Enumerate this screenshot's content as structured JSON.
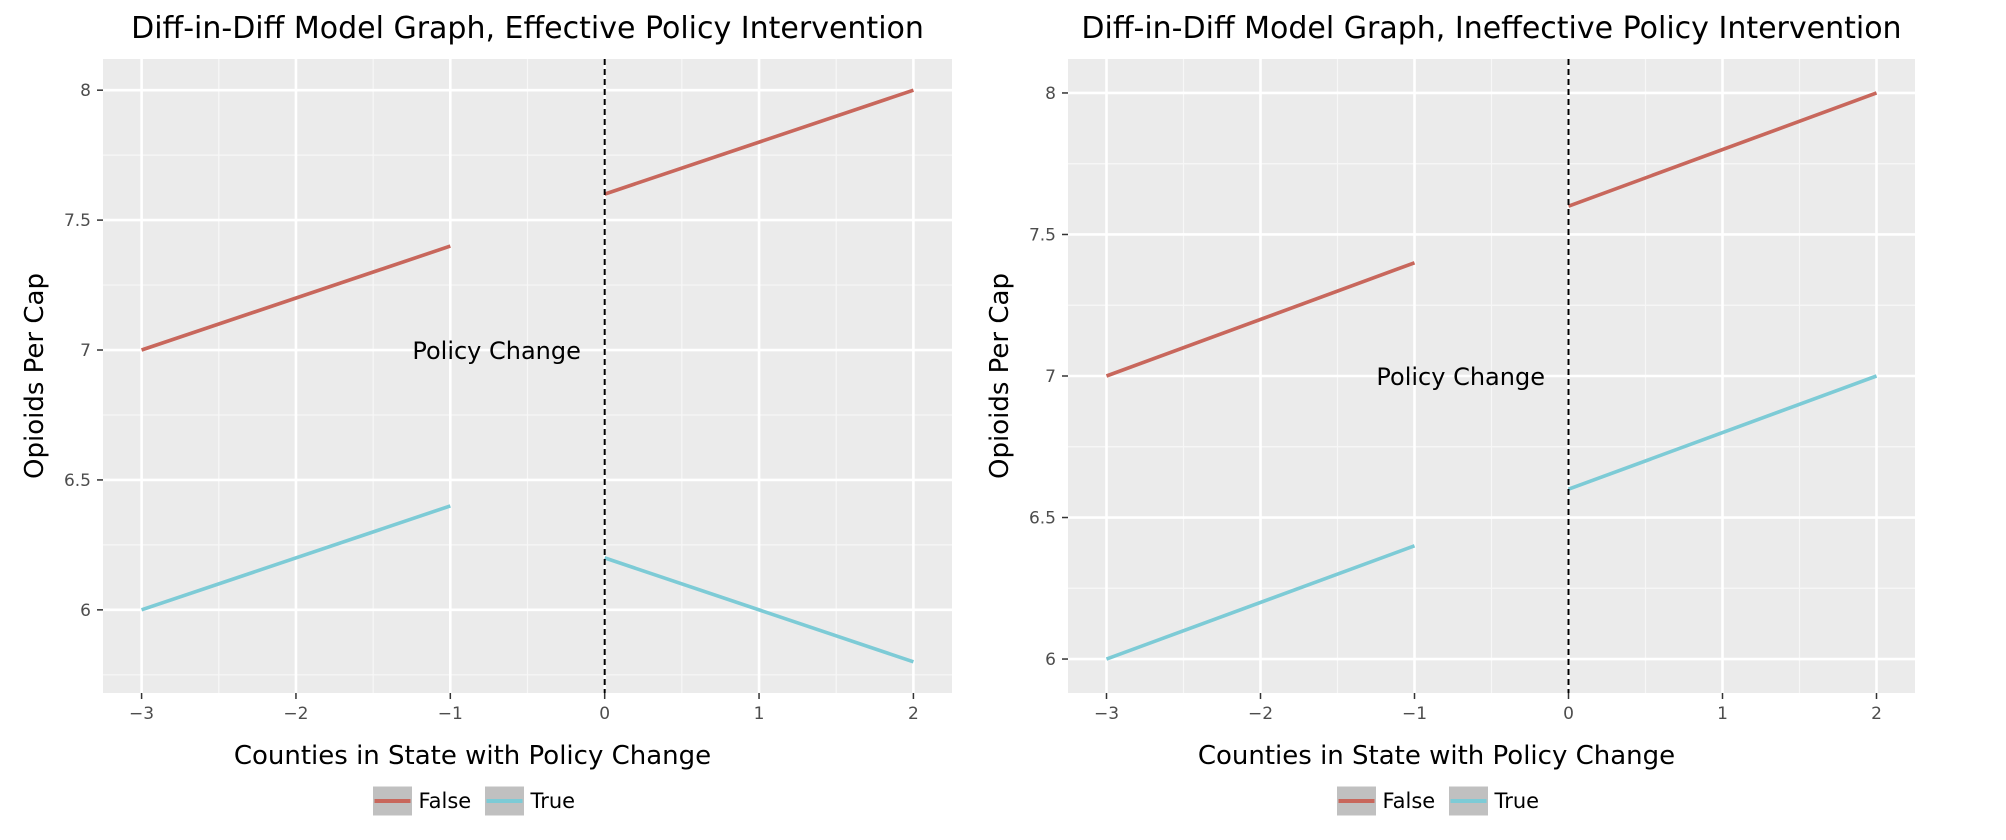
{
  "chart_data": [
    {
      "type": "line",
      "title": "Diff-in-Diff Model Graph, Effective Policy Intervention",
      "xlabel": "Counties in State with Policy Change",
      "ylabel": "Opioids Per Cap",
      "xlim": [
        -3.25,
        2.25
      ],
      "ylim": [
        5.68,
        8.12
      ],
      "xticks": [
        -3,
        -2,
        -1,
        0,
        1,
        2
      ],
      "xtick_labels": [
        "−3",
        "−2",
        "−1",
        "0",
        "1",
        "2"
      ],
      "yticks": [
        6,
        6.5,
        7,
        7.5,
        8
      ],
      "ytick_labels": [
        "6",
        "6.5",
        "7",
        "7.5",
        "8"
      ],
      "grid": true,
      "legend_position": "bottom",
      "vline": {
        "x": 0,
        "style": "dashed",
        "color": "#000000"
      },
      "annotation": {
        "text": "Policy Change",
        "x": -0.7,
        "y": 7
      },
      "series": [
        {
          "name": "False",
          "color": "#c8675c",
          "segments": [
            [
              [
                -3,
                7.0
              ],
              [
                -1,
                7.4
              ]
            ],
            [
              [
                0,
                7.6
              ],
              [
                2,
                8.0
              ]
            ]
          ]
        },
        {
          "name": "True",
          "color": "#7dcbd6",
          "segments": [
            [
              [
                -3,
                6.0
              ],
              [
                -1,
                6.4
              ]
            ],
            [
              [
                0,
                6.2
              ],
              [
                2,
                5.8
              ]
            ]
          ]
        }
      ]
    },
    {
      "type": "line",
      "title": "Diff-in-Diff Model Graph, Ineffective Policy Intervention",
      "xlabel": "Counties in State with Policy Change",
      "ylabel": "Opioids Per Cap",
      "xlim": [
        -3.25,
        2.25
      ],
      "ylim": [
        5.88,
        8.12
      ],
      "xticks": [
        -3,
        -2,
        -1,
        0,
        1,
        2
      ],
      "xtick_labels": [
        "−3",
        "−2",
        "−1",
        "0",
        "1",
        "2"
      ],
      "yticks": [
        6,
        6.5,
        7,
        7.5,
        8
      ],
      "ytick_labels": [
        "6",
        "6.5",
        "7",
        "7.5",
        "8"
      ],
      "grid": true,
      "legend_position": "bottom",
      "vline": {
        "x": 0,
        "style": "dashed",
        "color": "#000000"
      },
      "annotation": {
        "text": "Policy Change",
        "x": -0.7,
        "y": 7
      },
      "series": [
        {
          "name": "False",
          "color": "#c8675c",
          "segments": [
            [
              [
                -3,
                7.0
              ],
              [
                -1,
                7.4
              ]
            ],
            [
              [
                0,
                7.6
              ],
              [
                2,
                8.0
              ]
            ]
          ]
        },
        {
          "name": "True",
          "color": "#7dcbd6",
          "segments": [
            [
              [
                -3,
                6.0
              ],
              [
                -1,
                6.4
              ]
            ],
            [
              [
                0,
                6.6
              ],
              [
                2,
                7.0
              ]
            ]
          ]
        }
      ]
    }
  ]
}
